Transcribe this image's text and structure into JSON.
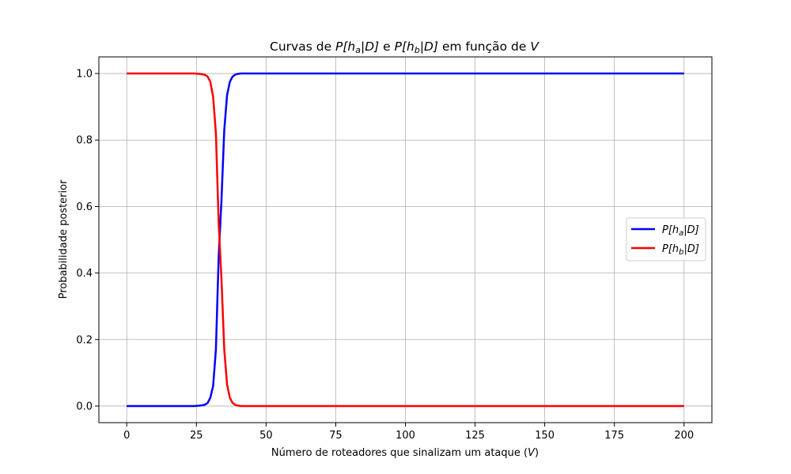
{
  "chart_data": {
    "type": "line",
    "title": {
      "prefix": "Curvas de ",
      "part1": "P[h",
      "part1_sub": "a",
      "part1_end": "|D]",
      "mid": " e ",
      "part2": "P[h",
      "part2_sub": "b",
      "part2_end": "|D]",
      "suffix": " em função de ",
      "var": "V"
    },
    "xlabel": {
      "text": "Número de roteadores que sinalizam um ataque (",
      "var": "V",
      "end": ")"
    },
    "ylabel": "Probabilidade posterior",
    "xlim": [
      -10,
      210
    ],
    "ylim": [
      -0.05,
      1.05
    ],
    "xticks": [
      0,
      25,
      50,
      75,
      100,
      125,
      150,
      175,
      200
    ],
    "yticks": [
      0.0,
      0.2,
      0.4,
      0.6,
      0.8,
      1.0
    ],
    "grid": true,
    "legend_position": "center-right",
    "x": [
      0,
      2,
      4,
      6,
      8,
      10,
      12,
      14,
      16,
      18,
      20,
      22,
      24,
      26,
      27,
      28,
      29,
      30,
      31,
      32,
      33,
      34,
      35,
      36,
      37,
      38,
      39,
      40,
      41,
      42,
      44,
      46,
      48,
      50,
      60,
      80,
      100,
      120,
      140,
      160,
      180,
      200
    ],
    "series": [
      {
        "name": "P[h_a|D]",
        "label_main": "P[h",
        "label_sub": "a",
        "label_end": "|D]",
        "color": "#0000ff",
        "values": [
          0,
          0,
          0,
          0,
          0,
          0,
          0,
          0,
          0,
          0,
          0,
          0,
          0,
          0.001,
          0.002,
          0.004,
          0.009,
          0.025,
          0.06,
          0.17,
          0.45,
          0.62,
          0.83,
          0.935,
          0.975,
          0.991,
          0.997,
          0.999,
          1.0,
          1.0,
          1.0,
          1.0,
          1.0,
          1.0,
          1.0,
          1.0,
          1.0,
          1.0,
          1.0,
          1.0,
          1.0,
          1.0
        ]
      },
      {
        "name": "P[h_b|D]",
        "label_main": "P[h",
        "label_sub": "b",
        "label_end": "|D]",
        "color": "#ff0000",
        "values": [
          1,
          1,
          1,
          1,
          1,
          1,
          1,
          1,
          1,
          1,
          1,
          1,
          1,
          0.999,
          0.998,
          0.996,
          0.991,
          0.975,
          0.93,
          0.82,
          0.55,
          0.38,
          0.17,
          0.065,
          0.025,
          0.009,
          0.003,
          0.001,
          0.0,
          0.0,
          0.0,
          0.0,
          0.0,
          0.0,
          0.0,
          0.0,
          0.0,
          0.0,
          0.0,
          0.0,
          0.0,
          0.0
        ]
      }
    ]
  }
}
